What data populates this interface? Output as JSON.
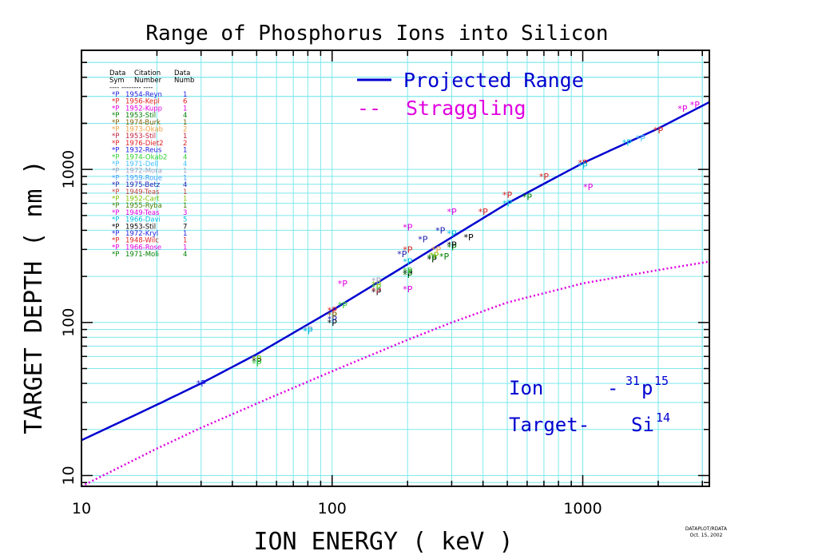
{
  "chart_data": {
    "type": "scatter",
    "title": "Range of Phosphorus Ions into Silicon",
    "xlabel": "ION ENERGY ( keV )",
    "ylabel": "TARGET DEPTH ( nm )",
    "xscale": "log",
    "yscale": "log",
    "xlim": [
      10,
      3200
    ],
    "ylim": [
      8.5,
      6000
    ],
    "xticks": [
      "10",
      "100",
      "1000"
    ],
    "yticks": [
      "10",
      "100",
      "1000"
    ],
    "grid": true,
    "legend": {
      "placement": "top-center",
      "entries": [
        {
          "label": "Projected Range",
          "style": "solid",
          "color": "#0000d0"
        },
        {
          "label": "Straggling",
          "style": "dashed",
          "color": "#e000e0",
          "marker": "--"
        }
      ]
    },
    "lines": [
      {
        "name": "Projected Range",
        "style": "solid",
        "color": "#0000d0",
        "x": [
          10,
          20,
          30,
          50,
          100,
          200,
          300,
          500,
          1000,
          2000,
          3200
        ],
        "y": [
          17,
          29,
          40,
          62,
          120,
          240,
          360,
          600,
          1100,
          1850,
          2750
        ]
      },
      {
        "name": "Straggling",
        "style": "dotted",
        "color": "#e000e0",
        "x": [
          10,
          20,
          30,
          50,
          100,
          200,
          300,
          500,
          1000,
          2000,
          3200
        ],
        "y": [
          8.5,
          15,
          20.5,
          29.5,
          48,
          77,
          100,
          135,
          180,
          220,
          250
        ]
      }
    ],
    "table_header": {
      "col1": [
        "Data",
        "Sym"
      ],
      "col2": [
        "Citation",
        "Number"
      ],
      "col3": [
        "Data",
        "Numb"
      ],
      "rule": "----  --------  ----"
    },
    "table": [
      {
        "sym": "*P",
        "citation": "1954-Reyn",
        "numb": "1",
        "color": "#2020e0"
      },
      {
        "sym": "*P",
        "citation": "1956-Kepl",
        "numb": "6",
        "color": "#e02020"
      },
      {
        "sym": "*P",
        "citation": "1952-Kupp",
        "numb": "1",
        "color": "#e000e0"
      },
      {
        "sym": "*P",
        "citation": "1953-Stil",
        "numb": "4",
        "color": "#008000"
      },
      {
        "sym": "*P",
        "citation": "1974-Burk",
        "numb": "1",
        "color": "#806000"
      },
      {
        "sym": "*P",
        "citation": "1973-Okab",
        "numb": "2",
        "color": "#f0a040"
      },
      {
        "sym": "*P",
        "citation": "1953-Stil",
        "numb": "1",
        "color": "#c02040"
      },
      {
        "sym": "*P",
        "citation": "1976-Diet2",
        "numb": "2",
        "color": "#e02020"
      },
      {
        "sym": "*P",
        "citation": "1932-Reus",
        "numb": "1",
        "color": "#2020e0"
      },
      {
        "sym": "*P",
        "citation": "1974-Okab2",
        "numb": "4",
        "color": "#30d030"
      },
      {
        "sym": "*P",
        "citation": "1971-Dell",
        "numb": "4",
        "color": "#40c0ff"
      },
      {
        "sym": "*P",
        "citation": "1972-Mora",
        "numb": "1",
        "color": "#a0a0c0"
      },
      {
        "sym": "*P",
        "citation": "1959-Roue",
        "numb": "1",
        "color": "#40a0ff"
      },
      {
        "sym": "*P",
        "citation": "1975-Betz",
        "numb": "4",
        "color": "#2020b0"
      },
      {
        "sym": "*P",
        "citation": "1949-Teas",
        "numb": "1",
        "color": "#c04040"
      },
      {
        "sym": "*P",
        "citation": "1952-Cart",
        "numb": "1",
        "color": "#80c000"
      },
      {
        "sym": "*P",
        "citation": "1955-Ryba",
        "numb": "1",
        "color": "#408000"
      },
      {
        "sym": "*P",
        "citation": "1949-Teas",
        "numb": "3",
        "color": "#e000e0"
      },
      {
        "sym": "*P",
        "citation": "1966-Davi",
        "numb": "5",
        "color": "#00c0e0"
      },
      {
        "sym": "*P",
        "citation": "1953-Stil",
        "numb": "7",
        "color": "#000000"
      },
      {
        "sym": "*P",
        "citation": "1972-Kryl",
        "numb": "1",
        "color": "#2020e0"
      },
      {
        "sym": "*P",
        "citation": "1948-Wilc",
        "numb": "1",
        "color": "#e02020"
      },
      {
        "sym": "*P",
        "citation": "1966-Rose",
        "numb": "1",
        "color": "#e000e0"
      },
      {
        "sym": "*P",
        "citation": "1971-Moli",
        "numb": "4",
        "color": "#008000"
      }
    ],
    "points_label": "*P",
    "points": [
      {
        "x": 30,
        "y": 40,
        "color": "#2020e0"
      },
      {
        "x": 50,
        "y": 56,
        "color": "#000000"
      },
      {
        "x": 50,
        "y": 58,
        "color": "#80c000"
      },
      {
        "x": 50,
        "y": 54,
        "color": "#30d030"
      },
      {
        "x": 80,
        "y": 90,
        "color": "#a0a0c0"
      },
      {
        "x": 80,
        "y": 88,
        "color": "#00c0e0"
      },
      {
        "x": 100,
        "y": 100,
        "color": "#000000"
      },
      {
        "x": 100,
        "y": 105,
        "color": "#2020b0"
      },
      {
        "x": 100,
        "y": 112,
        "color": "#806000"
      },
      {
        "x": 100,
        "y": 120,
        "color": "#e02020"
      },
      {
        "x": 110,
        "y": 130,
        "color": "#30d030"
      },
      {
        "x": 110,
        "y": 180,
        "color": "#e000e0"
      },
      {
        "x": 150,
        "y": 158,
        "color": "#000000"
      },
      {
        "x": 150,
        "y": 162,
        "color": "#c02040"
      },
      {
        "x": 150,
        "y": 170,
        "color": "#30d030"
      },
      {
        "x": 150,
        "y": 178,
        "color": "#80c000"
      },
      {
        "x": 150,
        "y": 187,
        "color": "#a0a0c0"
      },
      {
        "x": 190,
        "y": 280,
        "color": "#2020b0"
      },
      {
        "x": 200,
        "y": 205,
        "color": "#008000"
      },
      {
        "x": 200,
        "y": 212,
        "color": "#000000"
      },
      {
        "x": 200,
        "y": 218,
        "color": "#30d030"
      },
      {
        "x": 200,
        "y": 165,
        "color": "#e000e0"
      },
      {
        "x": 200,
        "y": 250,
        "color": "#00c0e0"
      },
      {
        "x": 200,
        "y": 300,
        "color": "#e02020"
      },
      {
        "x": 200,
        "y": 420,
        "color": "#e000e0"
      },
      {
        "x": 230,
        "y": 350,
        "color": "#2020b0"
      },
      {
        "x": 250,
        "y": 260,
        "color": "#000000"
      },
      {
        "x": 250,
        "y": 265,
        "color": "#008000"
      },
      {
        "x": 255,
        "y": 275,
        "color": "#80c000"
      },
      {
        "x": 260,
        "y": 300,
        "color": "#f0a040"
      },
      {
        "x": 270,
        "y": 400,
        "color": "#2020b0"
      },
      {
        "x": 280,
        "y": 270,
        "color": "#008000"
      },
      {
        "x": 300,
        "y": 310,
        "color": "#008000"
      },
      {
        "x": 300,
        "y": 322,
        "color": "#000000"
      },
      {
        "x": 300,
        "y": 380,
        "color": "#00c0e0"
      },
      {
        "x": 300,
        "y": 530,
        "color": "#e000e0"
      },
      {
        "x": 350,
        "y": 360,
        "color": "#000000"
      },
      {
        "x": 400,
        "y": 530,
        "color": "#e02020"
      },
      {
        "x": 500,
        "y": 600,
        "color": "#00c0e0"
      },
      {
        "x": 500,
        "y": 680,
        "color": "#e02020"
      },
      {
        "x": 600,
        "y": 660,
        "color": "#008000"
      },
      {
        "x": 700,
        "y": 900,
        "color": "#e02020"
      },
      {
        "x": 1000,
        "y": 1100,
        "color": "#e02020"
      },
      {
        "x": 1000,
        "y": 1060,
        "color": "#00c0e0"
      },
      {
        "x": 1050,
        "y": 770,
        "color": "#e000e0"
      },
      {
        "x": 1500,
        "y": 1500,
        "color": "#00c0e0"
      },
      {
        "x": 1700,
        "y": 1600,
        "color": "#40c0ff"
      },
      {
        "x": 2000,
        "y": 1800,
        "color": "#e02020"
      },
      {
        "x": 2500,
        "y": 2500,
        "color": "#e000e0"
      },
      {
        "x": 2800,
        "y": 2650,
        "color": "#e000e0"
      }
    ],
    "annotation": {
      "ion_label": "Ion",
      "ion_dash": "-",
      "ion_mass": "31",
      "ion_symbol": "p",
      "ion_number": "15",
      "target_label": "Target-",
      "target_symbol": "Si",
      "target_number": "14"
    },
    "footer": [
      "DATAPLOT/RDATA",
      "Oct. 15, 2002"
    ]
  }
}
